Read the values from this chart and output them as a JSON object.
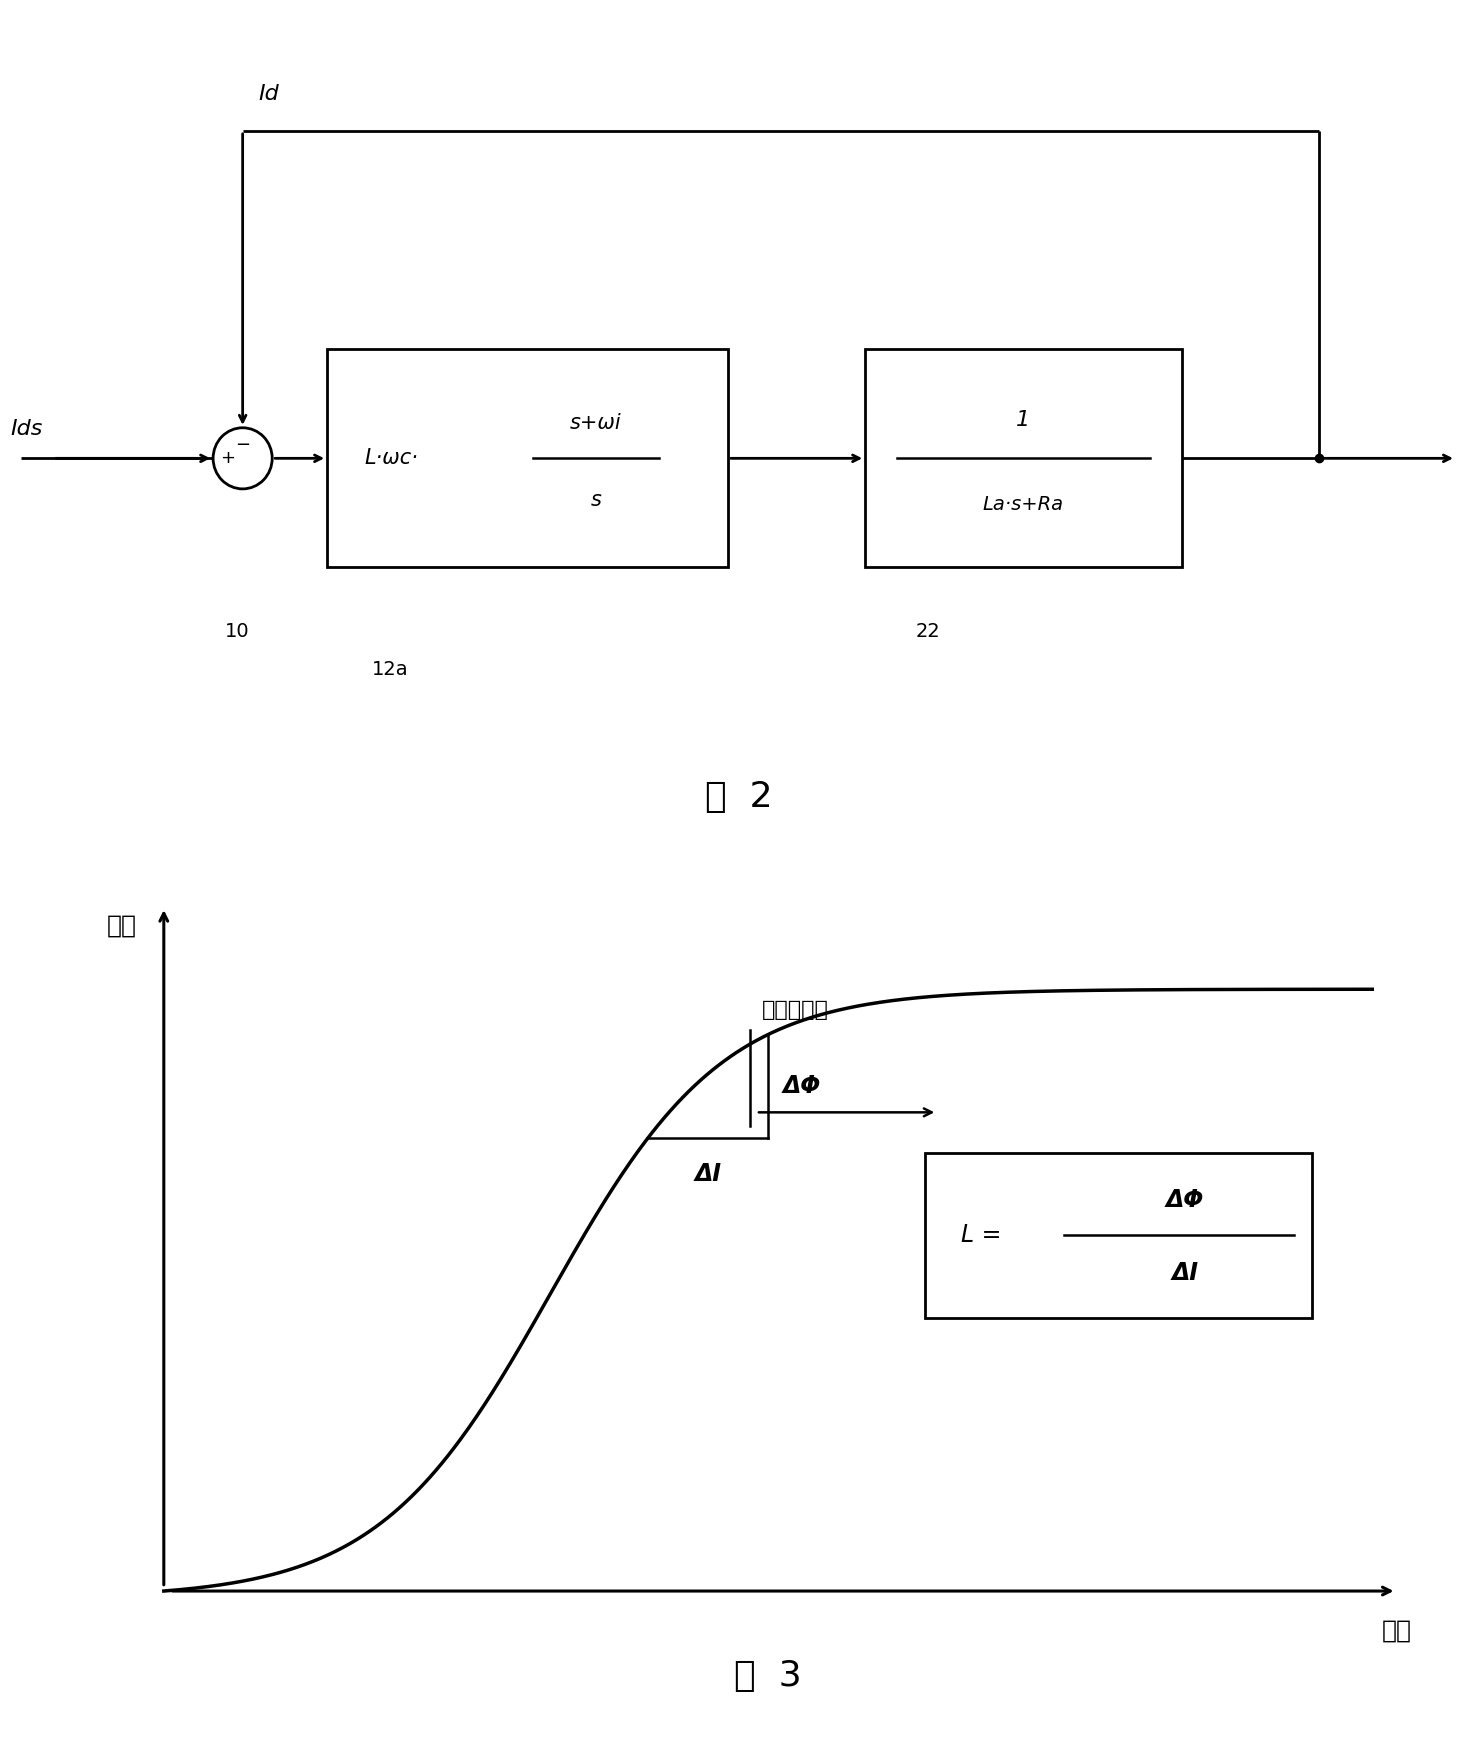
{
  "background_color": "#ffffff",
  "fig2": {
    "title": "图  2",
    "Id_label": "Id",
    "Ids_label": "Ids",
    "minus_label": "−",
    "plus_label": "+",
    "node10": "10",
    "node12a": "12a",
    "node22": "22",
    "block1_left": "L·ωc·",
    "block1_top": "s+ωi",
    "block1_bot": "s",
    "block2_top": "1",
    "block2_bot": "La·s+Ra"
  },
  "fig3": {
    "title": "图  3",
    "ylabel": "磁通",
    "xlabel": "电流",
    "sat_label": "磁饱和区域",
    "delta_phi": "ΔΦ",
    "delta_I": "ΔI",
    "formula_L": "L =",
    "formula_top": "ΔΦ",
    "formula_bot": "ΔI"
  }
}
